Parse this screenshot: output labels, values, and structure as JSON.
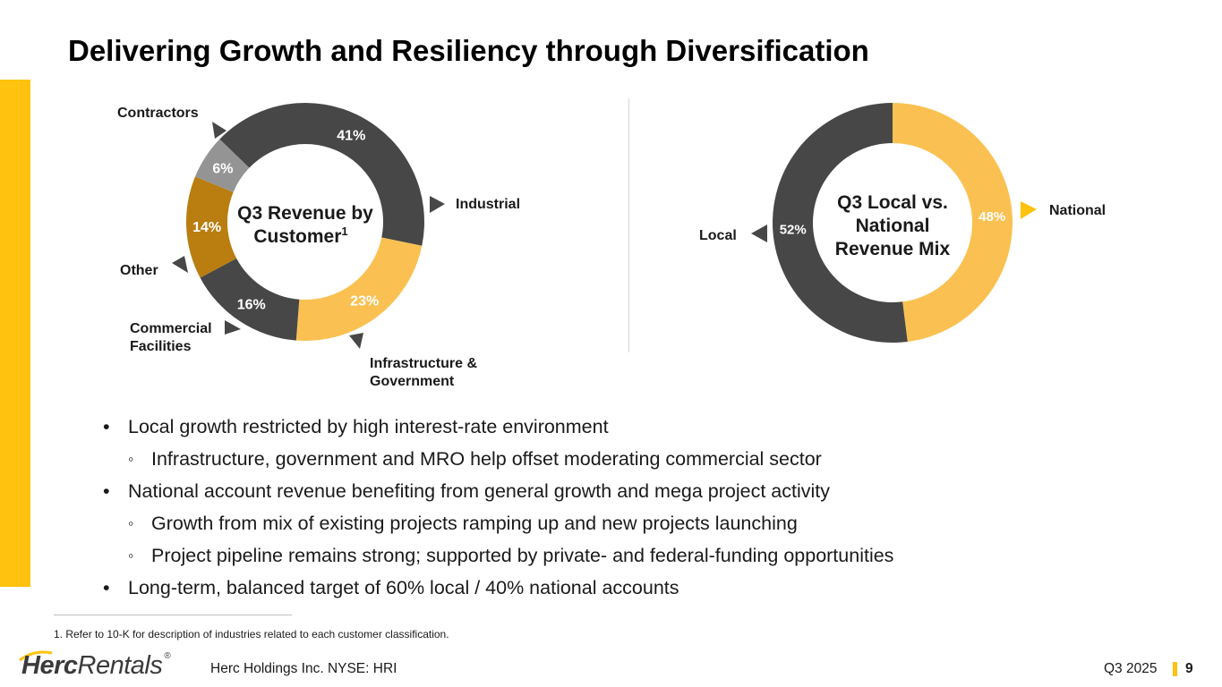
{
  "title": "Delivering Growth and Resiliency through Diversification",
  "chart_data": [
    {
      "type": "donut",
      "center_label": "Q3 Revenue by Customer",
      "center_label_sup": "1",
      "slices": [
        {
          "name": "Contractors",
          "value": 41,
          "label": "41%",
          "color": "#474747"
        },
        {
          "name": "Industrial",
          "value": 23,
          "label": "23%",
          "color": "#FAC152"
        },
        {
          "name": "Infrastructure & Government",
          "value": 16,
          "label": "16%",
          "color": "#474747"
        },
        {
          "name": "Commercial Facilities",
          "value": 14,
          "label": "14%",
          "color": "#B97D10"
        },
        {
          "name": "Other",
          "value": 6,
          "label": "6%",
          "color": "#949494"
        }
      ]
    },
    {
      "type": "donut",
      "center_label": "Q3 Local vs. National Revenue Mix",
      "slices": [
        {
          "name": "National",
          "value": 48,
          "label": "48%",
          "color": "#FAC152"
        },
        {
          "name": "Local",
          "value": 52,
          "label": "52%",
          "color": "#474747"
        }
      ]
    }
  ],
  "callouts": {
    "contractors": "Contractors",
    "industrial": "Industrial",
    "infra_1": "Infrastructure &",
    "infra_2": "Government",
    "commercial_1": "Commercial",
    "commercial_2": "Facilities",
    "other": "Other",
    "local": "Local",
    "national": "National"
  },
  "center_labels": {
    "c1_line1": "Q3 Revenue by",
    "c1_line2": "Customer",
    "c1_sup": "1",
    "c2_line1": "Q3 Local vs.",
    "c2_line2": "National",
    "c2_line3": "Revenue Mix"
  },
  "bullets": [
    {
      "level": 1,
      "text": "Local growth restricted by high interest-rate environment"
    },
    {
      "level": 2,
      "text": "Infrastructure, government and MRO help offset moderating commercial sector"
    },
    {
      "level": 1,
      "text": "National account revenue benefiting from general growth and mega project activity"
    },
    {
      "level": 2,
      "text": "Growth from mix of existing projects ramping up and new projects launching"
    },
    {
      "level": 2,
      "text": "Project pipeline remains strong; supported by private- and federal-funding opportunities"
    },
    {
      "level": 1,
      "text": "Long-term, balanced target of 60% local / 40% national accounts"
    }
  ],
  "footnote": "1. Refer to 10-K for description of industries related to each customer classification.",
  "footer": {
    "logo_bold": "Herc",
    "logo_regular": "Rentals",
    "logo_reg_mark": "®",
    "company": "Herc Holdings Inc.  NYSE: HRI",
    "period": "Q3 2025",
    "page": "9"
  },
  "colors": {
    "accent": "#FFC20E",
    "dark": "#474747",
    "gold": "#FAC152",
    "bronze": "#B97D10",
    "gray": "#949494"
  }
}
